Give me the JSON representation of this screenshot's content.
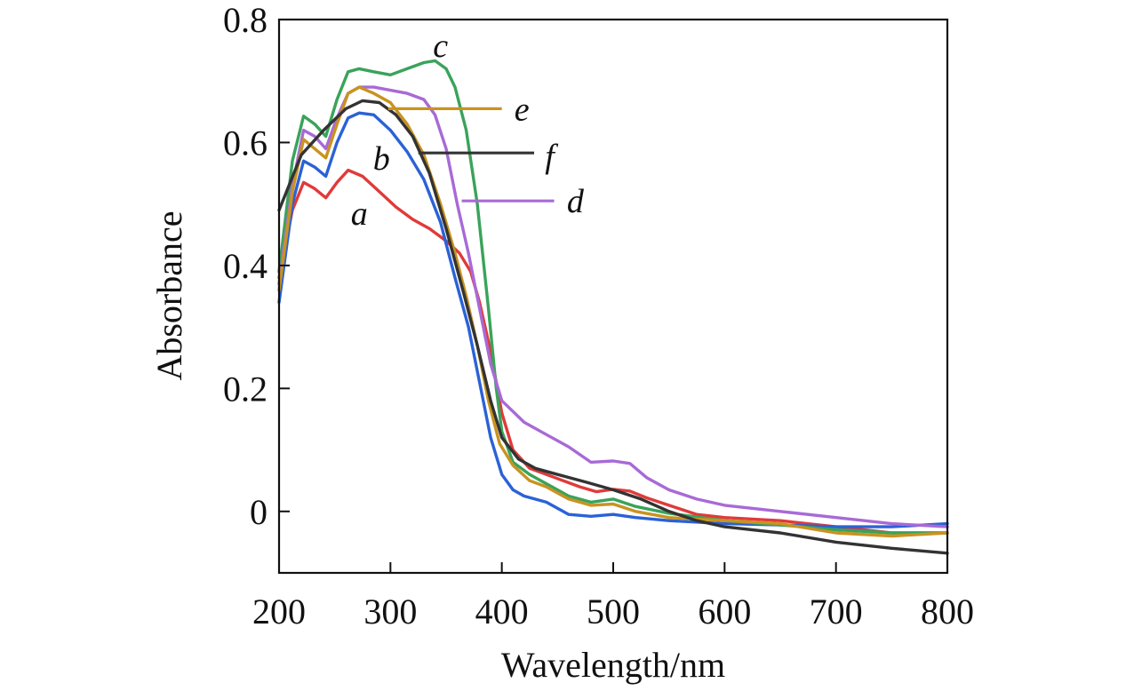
{
  "chart_data": {
    "type": "line",
    "title": "",
    "xlabel": "Wavelength/nm",
    "ylabel": "Absorbance",
    "xlim": [
      200,
      800
    ],
    "ylim": [
      -0.1,
      0.8
    ],
    "xticks": [
      200,
      300,
      400,
      500,
      600,
      700,
      800
    ],
    "yticks": [
      0,
      0.2,
      0.4,
      0.6,
      0.8
    ],
    "xtick_labels": [
      "200",
      "300",
      "400",
      "500",
      "600",
      "700",
      "800"
    ],
    "ytick_labels": [
      "0",
      "0.2",
      "0.4",
      "0.6",
      "0.8"
    ],
    "grid": false,
    "series": [
      {
        "name": "a",
        "label": "a",
        "color": "#e03a3a",
        "x": [
          200,
          212,
          222,
          232,
          242,
          252,
          262,
          275,
          290,
          305,
          320,
          335,
          350,
          362,
          372,
          380,
          390,
          400,
          410,
          425,
          440,
          455,
          470,
          485,
          500,
          515,
          530,
          550,
          575,
          600,
          650,
          700,
          750,
          800
        ],
        "y": [
          0.38,
          0.49,
          0.535,
          0.525,
          0.51,
          0.535,
          0.555,
          0.545,
          0.52,
          0.495,
          0.475,
          0.46,
          0.44,
          0.42,
          0.39,
          0.34,
          0.26,
          0.16,
          0.1,
          0.07,
          0.06,
          0.05,
          0.04,
          0.032,
          0.036,
          0.033,
          0.022,
          0.01,
          -0.005,
          -0.01,
          -0.015,
          -0.025,
          -0.035,
          -0.035
        ]
      },
      {
        "name": "b",
        "label": "b",
        "color": "#2a62d6",
        "x": [
          200,
          212,
          222,
          232,
          242,
          252,
          262,
          272,
          285,
          300,
          315,
          330,
          345,
          358,
          370,
          380,
          390,
          400,
          410,
          420,
          440,
          460,
          480,
          500,
          520,
          550,
          600,
          650,
          700,
          750,
          800
        ],
        "y": [
          0.34,
          0.5,
          0.57,
          0.56,
          0.545,
          0.6,
          0.64,
          0.648,
          0.645,
          0.62,
          0.585,
          0.54,
          0.47,
          0.38,
          0.3,
          0.21,
          0.12,
          0.06,
          0.035,
          0.025,
          0.015,
          -0.005,
          -0.008,
          -0.005,
          -0.01,
          -0.015,
          -0.02,
          -0.022,
          -0.025,
          -0.025,
          -0.02
        ]
      },
      {
        "name": "c",
        "label": "c",
        "color": "#3aa35a",
        "x": [
          200,
          212,
          222,
          232,
          242,
          252,
          262,
          272,
          285,
          300,
          315,
          330,
          340,
          350,
          358,
          368,
          378,
          388,
          395,
          400,
          410,
          425,
          440,
          460,
          480,
          500,
          520,
          550,
          600,
          650,
          700,
          750,
          800
        ],
        "y": [
          0.39,
          0.57,
          0.643,
          0.63,
          0.61,
          0.67,
          0.715,
          0.72,
          0.715,
          0.71,
          0.72,
          0.73,
          0.733,
          0.72,
          0.69,
          0.62,
          0.5,
          0.33,
          0.2,
          0.13,
          0.08,
          0.06,
          0.045,
          0.025,
          0.015,
          0.02,
          0.008,
          -0.003,
          -0.015,
          -0.022,
          -0.03,
          -0.035,
          -0.035
        ]
      },
      {
        "name": "d",
        "label": "d",
        "color": "#a86ad6",
        "x": [
          200,
          212,
          222,
          232,
          242,
          252,
          262,
          272,
          285,
          300,
          315,
          330,
          340,
          350,
          360,
          370,
          380,
          390,
          400,
          420,
          440,
          460,
          480,
          500,
          515,
          530,
          550,
          575,
          600,
          650,
          700,
          750,
          800
        ],
        "y": [
          0.37,
          0.53,
          0.62,
          0.61,
          0.59,
          0.64,
          0.68,
          0.69,
          0.69,
          0.685,
          0.68,
          0.67,
          0.645,
          0.59,
          0.5,
          0.42,
          0.33,
          0.24,
          0.18,
          0.145,
          0.125,
          0.105,
          0.08,
          0.082,
          0.078,
          0.055,
          0.035,
          0.02,
          0.01,
          0.0,
          -0.01,
          -0.02,
          -0.025
        ]
      },
      {
        "name": "e",
        "label": "e",
        "color": "#c99320",
        "x": [
          200,
          212,
          222,
          232,
          242,
          252,
          262,
          272,
          285,
          300,
          315,
          330,
          345,
          358,
          368,
          378,
          388,
          398,
          410,
          425,
          440,
          460,
          480,
          500,
          520,
          550,
          600,
          650,
          700,
          750,
          800
        ],
        "y": [
          0.36,
          0.52,
          0.605,
          0.59,
          0.575,
          0.63,
          0.68,
          0.69,
          0.68,
          0.665,
          0.63,
          0.58,
          0.5,
          0.42,
          0.35,
          0.27,
          0.18,
          0.11,
          0.075,
          0.05,
          0.04,
          0.02,
          0.01,
          0.012,
          0.0,
          -0.01,
          -0.015,
          -0.02,
          -0.035,
          -0.04,
          -0.035
        ]
      },
      {
        "name": "f",
        "label": "f",
        "color": "#333333",
        "x": [
          200,
          220,
          240,
          260,
          275,
          290,
          305,
          320,
          335,
          350,
          365,
          378,
          390,
          400,
          415,
          430,
          450,
          475,
          500,
          525,
          550,
          575,
          600,
          650,
          700,
          750,
          800
        ],
        "y": [
          0.49,
          0.58,
          0.62,
          0.655,
          0.668,
          0.665,
          0.645,
          0.61,
          0.55,
          0.46,
          0.36,
          0.27,
          0.18,
          0.12,
          0.085,
          0.07,
          0.06,
          0.048,
          0.035,
          0.02,
          0.0,
          -0.015,
          -0.025,
          -0.035,
          -0.05,
          -0.06,
          -0.068
        ]
      }
    ],
    "annotations": [
      {
        "text": "a",
        "series": "a",
        "x": 272,
        "y": 0.485
      },
      {
        "text": "b",
        "series": "b",
        "x": 292,
        "y": 0.575
      },
      {
        "text": "c",
        "series": "c",
        "x": 345,
        "y": 0.758
      },
      {
        "text": "e",
        "series": "e",
        "x": 418,
        "y": 0.655,
        "leader_x": [
          298,
          400
        ],
        "leader_y": [
          0.655,
          0.655
        ]
      },
      {
        "text": "f",
        "series": "f",
        "x": 443,
        "y": 0.578,
        "leader_x": [
          325,
          429
        ],
        "leader_y": [
          0.583,
          0.583
        ]
      },
      {
        "text": "d",
        "series": "d",
        "x": 466,
        "y": 0.505,
        "leader_x": [
          364,
          447
        ],
        "leader_y": [
          0.505,
          0.505
        ]
      }
    ]
  }
}
